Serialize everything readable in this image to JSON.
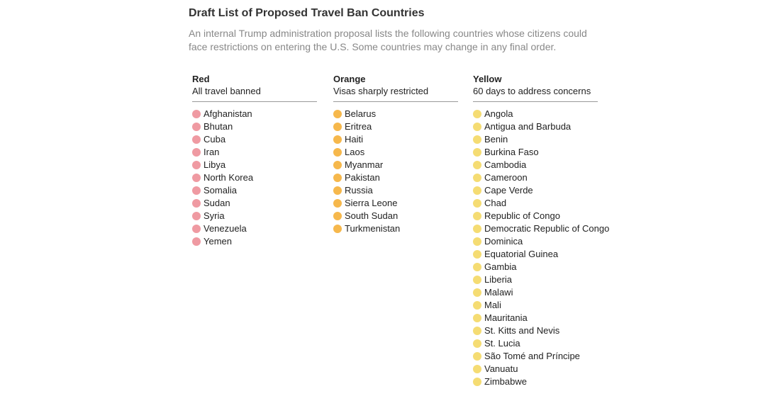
{
  "header": {
    "title": "Draft List of Proposed Travel Ban Countries",
    "subtitle": "An internal Trump administration proposal lists the following countries whose citizens could face restrictions on entering the U.S. Some countries may change in any final order."
  },
  "columns": [
    {
      "name": "Red",
      "description": "All travel banned",
      "color": "#ef9aa2",
      "countries": [
        "Afghanistan",
        "Bhutan",
        "Cuba",
        "Iran",
        "Libya",
        "North Korea",
        "Somalia",
        "Sudan",
        "Syria",
        "Venezuela",
        "Yemen"
      ]
    },
    {
      "name": "Orange",
      "description": "Visas sharply restricted",
      "color": "#f6b84c",
      "countries": [
        "Belarus",
        "Eritrea",
        "Haiti",
        "Laos",
        "Myanmar",
        "Pakistan",
        "Russia",
        "Sierra Leone",
        "South Sudan",
        "Turkmenistan"
      ]
    },
    {
      "name": "Yellow",
      "description": "60 days to address concerns",
      "color": "#f5dc73",
      "countries": [
        "Angola",
        "Antigua and Barbuda",
        "Benin",
        "Burkina Faso",
        "Cambodia",
        "Cameroon",
        "Cape Verde",
        "Chad",
        "Republic of Congo",
        "Democratic Republic of Congo",
        "Dominica",
        "Equatorial Guinea",
        "Gambia",
        "Liberia",
        "Malawi",
        "Mali",
        "Mauritania",
        "St. Kitts and Nevis",
        "St. Lucia",
        "São Tomé and Príncipe",
        "Vanuatu",
        "Zimbabwe"
      ]
    }
  ]
}
